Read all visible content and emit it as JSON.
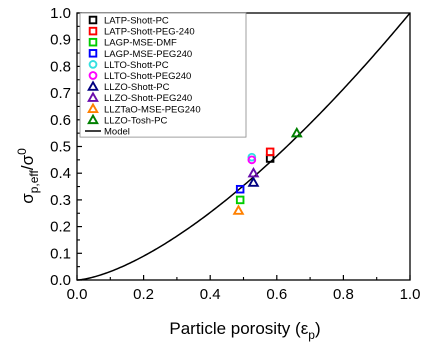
{
  "chart_data": {
    "type": "scatter",
    "title": "",
    "xlabel": {
      "main": "Particle porosity (",
      "symbol": "ε",
      "sub": "p",
      "close": ")"
    },
    "ylabel": {
      "sigma1": "σ",
      "sub": "p,eff",
      "slash": "/",
      "sigma2": "σ",
      "sup": "0"
    },
    "xlim": [
      0.0,
      1.0
    ],
    "ylim": [
      0.0,
      1.0
    ],
    "xticks": [
      "0.0",
      "0.2",
      "0.4",
      "0.6",
      "0.8",
      "1.0"
    ],
    "yticks": [
      "0.0",
      "0.1",
      "0.2",
      "0.3",
      "0.4",
      "0.5",
      "0.6",
      "0.7",
      "0.8",
      "0.9",
      "1.0"
    ],
    "grid": false,
    "legend_position": "top-left",
    "series": [
      {
        "name": "LATP-Shott-PC",
        "marker": "square",
        "color": "#000000",
        "x": [
          0.58
        ],
        "y": [
          0.455
        ]
      },
      {
        "name": "LATP-Shott-PEG-240",
        "marker": "square",
        "color": "#ff0000",
        "x": [
          0.58
        ],
        "y": [
          0.48
        ]
      },
      {
        "name": "LAGP-MSE-DMF",
        "marker": "square",
        "color": "#00cc00",
        "x": [
          0.49
        ],
        "y": [
          0.3
        ]
      },
      {
        "name": "LAGP-MSE-PEG240",
        "marker": "square",
        "color": "#0000ff",
        "x": [
          0.49
        ],
        "y": [
          0.34
        ]
      },
      {
        "name": "LLTO-Shott-PC",
        "marker": "circle",
        "color": "#33e0e0",
        "x": [
          0.525
        ],
        "y": [
          0.46
        ]
      },
      {
        "name": "LLTO-Shott-PEG240",
        "marker": "circle",
        "color": "#ff00ff",
        "x": [
          0.525
        ],
        "y": [
          0.45
        ]
      },
      {
        "name": "LLZO-Shott-PC",
        "marker": "triangle",
        "color": "#000080",
        "x": [
          0.53
        ],
        "y": [
          0.365
        ]
      },
      {
        "name": "LLZO-Shott-PEG240",
        "marker": "triangle",
        "color": "#6a0dad",
        "x": [
          0.53
        ],
        "y": [
          0.4
        ]
      },
      {
        "name": "LLZTaO-MSE-PEG240",
        "marker": "triangle",
        "color": "#ff8000",
        "x": [
          0.485
        ],
        "y": [
          0.26
        ]
      },
      {
        "name": "LLZO-Tosh-PC",
        "marker": "triangle",
        "color": "#008000",
        "x": [
          0.66
        ],
        "y": [
          0.55
        ]
      }
    ],
    "model": {
      "name": "Model",
      "color": "#000000",
      "equation": "y = x^1.5"
    }
  }
}
